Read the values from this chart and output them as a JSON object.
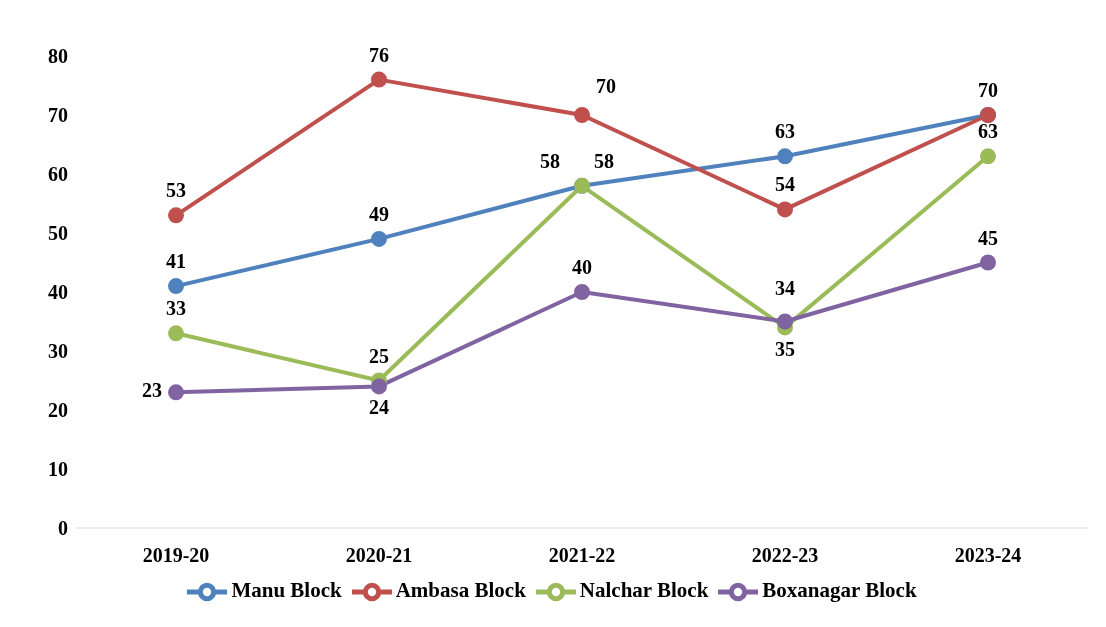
{
  "chart_data": {
    "type": "line",
    "categories": [
      "2019-20",
      "2020-21",
      "2021-22",
      "2022-23",
      "2023-24"
    ],
    "series": [
      {
        "name": "Manu Block",
        "color": "#4f81bd",
        "values": [
          41,
          49,
          58,
          63,
          70
        ],
        "value_labels": [
          "41",
          "49",
          "58",
          "63",
          null
        ]
      },
      {
        "name": "Ambasa Block",
        "color": "#c0504d",
        "values": [
          53,
          76,
          70,
          54,
          70
        ],
        "value_labels": [
          "53",
          "76",
          "70",
          "54",
          "70"
        ]
      },
      {
        "name": "Nalchar Block",
        "color": "#9bbb59",
        "values": [
          33,
          25,
          58,
          34,
          63
        ],
        "value_labels": [
          "33",
          "25",
          "58",
          "34",
          "63"
        ]
      },
      {
        "name": "Boxanagar Block",
        "color": "#8064a2",
        "values": [
          23,
          24,
          40,
          35,
          45
        ],
        "value_labels": [
          "23",
          "24",
          "40",
          "35",
          "45"
        ]
      }
    ],
    "ylim": [
      0,
      80
    ],
    "yticks": [
      0,
      10,
      20,
      30,
      40,
      50,
      60,
      70,
      80
    ],
    "grid": false,
    "legend": "bottom",
    "marker": "circle",
    "line_style": "solid"
  }
}
